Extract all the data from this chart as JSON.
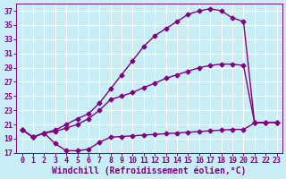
{
  "xlabel": "Windchill (Refroidissement éolien,°C)",
  "background_color": "#c8eef5",
  "line_color": "#800080",
  "grid_color": "#ffffff",
  "xlim": [
    -0.5,
    23.5
  ],
  "ylim": [
    17,
    38
  ],
  "yticks": [
    17,
    19,
    21,
    23,
    25,
    27,
    29,
    31,
    33,
    35,
    37
  ],
  "xticks": [
    0,
    1,
    2,
    3,
    4,
    5,
    6,
    7,
    8,
    9,
    10,
    11,
    12,
    13,
    14,
    15,
    16,
    17,
    18,
    19,
    20,
    21,
    22,
    23
  ],
  "curve1_x": [
    0,
    1,
    2,
    3,
    4,
    5,
    6,
    7,
    8,
    9,
    10,
    11,
    12,
    13,
    14,
    15,
    16,
    17,
    18,
    19,
    20,
    21,
    22,
    23
  ],
  "curve1_y": [
    20.3,
    19.2,
    19.8,
    18.3,
    17.3,
    17.3,
    17.5,
    18.5,
    19.2,
    19.3,
    19.4,
    19.5,
    19.6,
    19.7,
    19.8,
    19.9,
    20.0,
    20.1,
    20.2,
    20.3,
    20.3,
    21.2,
    21.3,
    21.3
  ],
  "curve2_x": [
    0,
    1,
    2,
    3,
    4,
    5,
    6,
    7,
    8,
    9,
    10,
    11,
    12,
    13,
    14,
    15,
    16,
    17,
    18,
    19,
    20,
    21,
    22,
    23
  ],
  "curve2_y": [
    20.3,
    19.2,
    19.8,
    20.2,
    21.0,
    21.8,
    22.5,
    24.0,
    26.0,
    28.0,
    30.0,
    32.0,
    33.5,
    34.5,
    35.5,
    36.5,
    37.0,
    37.3,
    37.0,
    36.0,
    35.5,
    21.2,
    21.3,
    21.3
  ],
  "curve3_x": [
    0,
    1,
    2,
    3,
    4,
    5,
    6,
    7,
    8,
    9,
    10,
    11,
    12,
    13,
    14,
    15,
    16,
    17,
    18,
    19,
    20,
    21,
    22,
    23
  ],
  "curve3_y": [
    20.3,
    19.2,
    19.8,
    20.0,
    20.5,
    21.0,
    21.8,
    23.0,
    24.5,
    25.0,
    25.5,
    26.2,
    26.8,
    27.5,
    28.0,
    28.5,
    29.0,
    29.3,
    29.5,
    29.5,
    29.3,
    21.2,
    21.3,
    21.3
  ],
  "marker": "D",
  "marker_size": 2.5,
  "linewidth": 1.0,
  "tick_fontsize": 6,
  "xlabel_fontsize": 7
}
